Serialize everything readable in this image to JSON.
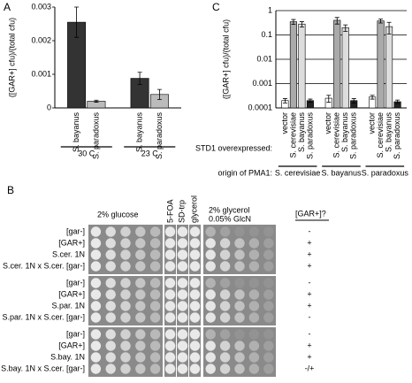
{
  "panel_labels": [
    "A",
    "B",
    "C"
  ],
  "chart_data": [
    {
      "type": "bar",
      "y_label": "([GAR+] cfu)/(total cfu)",
      "categories": [
        "S. bayanus",
        "S. paradoxus",
        "S. bayanus",
        "S. paradoxus"
      ],
      "values": [
        0.00255,
        0.0002,
        0.00088,
        0.0004
      ],
      "errors": [
        0.00045,
        3e-05,
        0.00018,
        0.00015
      ],
      "colors": [
        "#333333",
        "#bbbbbb",
        "#333333",
        "#bbbbbb"
      ],
      "groups": [
        "30 C",
        "23 C"
      ],
      "ylim": [
        0,
        0.003
      ],
      "yticks": [
        0,
        0.001,
        0.002,
        0.003
      ],
      "log_scale": false,
      "grid": false
    },
    {
      "type": "bar",
      "y_label": "([GAR+] cfu)/(total cfu)",
      "categories": [
        "vector",
        "S. cerevisiae",
        "S. bayanus",
        "S. paradoxus",
        "vector",
        "S. cerevisiae",
        "S. bayanus",
        "S. paradoxus",
        "vector",
        "S. cerevisiae",
        "S. bayanus",
        "S. paradoxus"
      ],
      "values": [
        0.0002,
        0.35,
        0.28,
        0.0002,
        0.00025,
        0.4,
        0.2,
        0.0002,
        0.00028,
        0.38,
        0.22,
        0.00018
      ],
      "errors": [
        4e-05,
        0.08,
        0.07,
        3e-05,
        8e-05,
        0.12,
        0.06,
        4e-05,
        5e-05,
        0.07,
        0.11,
        3e-05
      ],
      "colors": [
        "#ffffff",
        "#aaaaaa",
        "#dddddd",
        "#222222",
        "#ffffff",
        "#aaaaaa",
        "#dddddd",
        "#222222",
        "#ffffff",
        "#aaaaaa",
        "#dddddd",
        "#222222"
      ],
      "row_label": "STD1 overexpressed:",
      "group_title": "origin of PMA1:",
      "groups": [
        "S. cerevisiae",
        "S. bayanus",
        "S. paradoxus"
      ],
      "ylim": [
        0.0001,
        1
      ],
      "yticks": [
        0.0001,
        0.001,
        0.01,
        0.1,
        1
      ],
      "log_scale": true,
      "grid": true
    }
  ],
  "spot_assay": {
    "columns": {
      "glucose": "2% glucose",
      "foa": "5-FOA",
      "trp": "SD-trp",
      "glycerol": "glycerol",
      "glcn_1": "2% glycerol",
      "glcn_2": "0.05% GlcN",
      "result": "[GAR+]?"
    },
    "blocks": [
      {
        "rows": [
          {
            "label": "[gar-]",
            "result": "-"
          },
          {
            "label": "[GAR+]",
            "result": "+"
          },
          {
            "label": "S.cer. 1N",
            "result": "+"
          },
          {
            "label": "S.cer. 1N x S.cer. [gar-]",
            "result": "+"
          }
        ]
      },
      {
        "rows": [
          {
            "label": "[gar-]",
            "result": "-"
          },
          {
            "label": "[GAR+]",
            "result": "+"
          },
          {
            "label": "S.par. 1N",
            "result": "+"
          },
          {
            "label": "S.par. 1N x S.cer. [gar-]",
            "result": "-"
          }
        ]
      },
      {
        "rows": [
          {
            "label": "[gar-]",
            "result": "-"
          },
          {
            "label": "[GAR+]",
            "result": "+"
          },
          {
            "label": "S.bay. 1N",
            "result": "+"
          },
          {
            "label": "S.bay. 1N x S.cer. [gar-]",
            "result": "-/+"
          }
        ]
      }
    ]
  }
}
